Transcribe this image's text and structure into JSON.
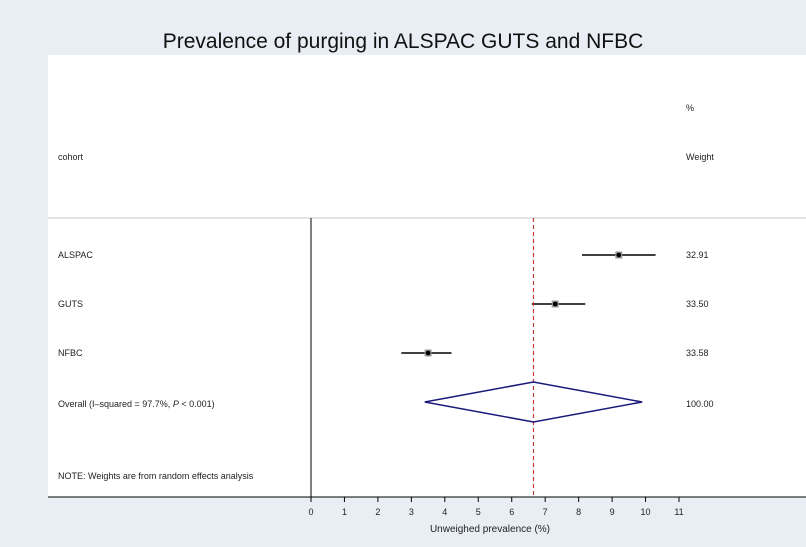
{
  "chart_data": {
    "type": "forest",
    "title": "Prevalence of purging in ALSPAC GUTS and NFBC",
    "xlabel": "Unweighed prevalence (%)",
    "xlim": [
      0,
      11
    ],
    "xticks": [
      "0",
      "1",
      "2",
      "3",
      "4",
      "5",
      "6",
      "7",
      "8",
      "9",
      "10",
      "11"
    ],
    "column_headers": {
      "study": "cohort",
      "weight_line1": "%",
      "weight_line2": "Weight"
    },
    "studies": [
      {
        "label": "ALSPAC",
        "estimate": 9.2,
        "ci_low": 8.1,
        "ci_high": 10.3,
        "weight": "32.91"
      },
      {
        "label": "GUTS",
        "estimate": 7.3,
        "ci_low": 6.6,
        "ci_high": 8.2,
        "weight": "33.50"
      },
      {
        "label": "NFBC",
        "estimate": 3.5,
        "ci_low": 2.7,
        "ci_high": 4.2,
        "weight": "33.58"
      }
    ],
    "overall": {
      "label": "Overall  (I–squared = 97.7%, ",
      "label_p": "P",
      "label_tail": " < 0.001)",
      "estimate": 6.65,
      "ci_low": 3.4,
      "ci_high": 9.9,
      "weight": "100.00"
    },
    "reference_line": 6.65,
    "note": "NOTE: Weights are from random effects analysis",
    "colors": {
      "background": "#e8eef3",
      "panel": "#ffffff",
      "diamond": "#1a1a7a",
      "reference_line": "#c83a3a",
      "ci_line": "#000000"
    }
  }
}
